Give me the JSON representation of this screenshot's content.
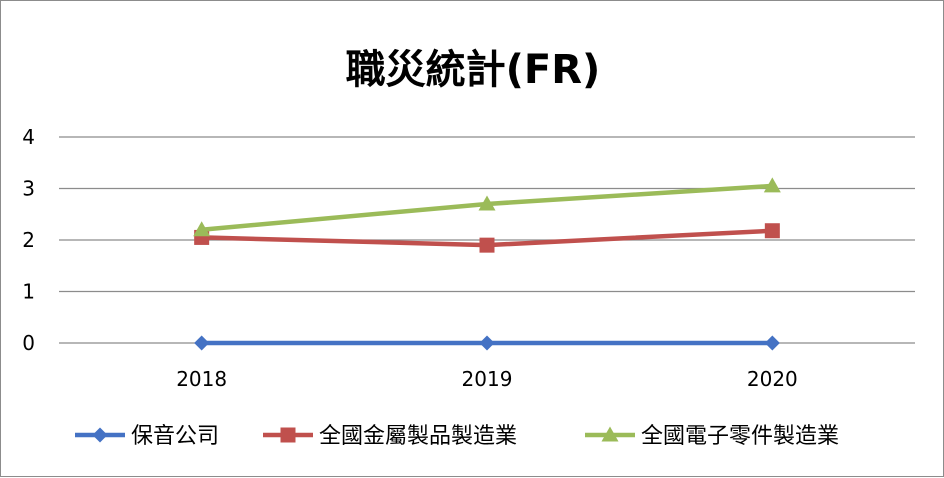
{
  "chart_data": {
    "type": "line",
    "title": "職災統計(FR)",
    "xlabel": "",
    "ylabel": "",
    "categories": [
      "2018",
      "2019",
      "2020"
    ],
    "ylim": [
      0,
      4
    ],
    "yticks": [
      0,
      1,
      2,
      3,
      4
    ],
    "grid": true,
    "legend_position": "bottom",
    "series": [
      {
        "name": "保音公司",
        "values": [
          0,
          0,
          0
        ],
        "color": "#4472c4",
        "marker": "diamond"
      },
      {
        "name": "全國金屬製品製造業",
        "values": [
          2.05,
          1.9,
          2.18
        ],
        "color": "#c0504d",
        "marker": "square"
      },
      {
        "name": "全國電子零件製造業",
        "values": [
          2.2,
          2.7,
          3.05
        ],
        "color": "#9bbb59",
        "marker": "triangle"
      }
    ]
  }
}
